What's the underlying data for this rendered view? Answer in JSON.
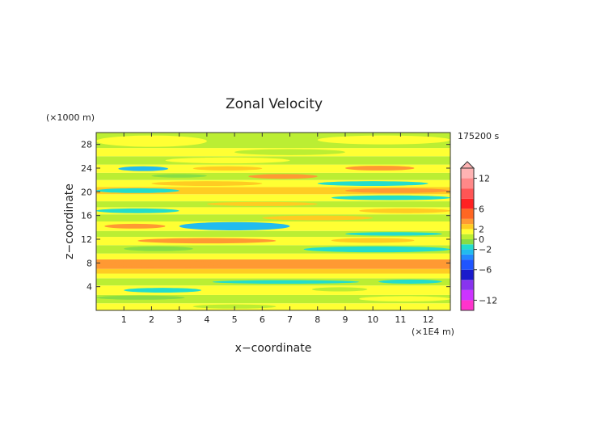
{
  "chart_data": {
    "type": "heatmap",
    "title": "Zonal Velocity",
    "xlabel": "x−coordinate",
    "ylabel": "z−coordinate",
    "x_unit": "(×1E4 m)",
    "y_unit": "(×1000 m)",
    "time_label": "175200 s",
    "xlim": [
      0,
      12.8
    ],
    "ylim": [
      0,
      30
    ],
    "x_ticks": [
      1,
      2,
      3,
      4,
      5,
      6,
      7,
      8,
      9,
      10,
      11,
      12
    ],
    "y_ticks": [
      4,
      8,
      12,
      16,
      20,
      24,
      28
    ],
    "colorbar": {
      "tick_labels": [
        "12",
        "6",
        "2",
        "0",
        "−2",
        "−6",
        "−12"
      ],
      "tick_values": [
        12,
        6,
        2,
        0,
        -2,
        -6,
        -12
      ],
      "levels": [
        {
          "lo": -14,
          "hi": -12,
          "color": "#ff33cc"
        },
        {
          "lo": -12,
          "hi": -10,
          "color": "#cc33ff"
        },
        {
          "lo": -10,
          "hi": -8,
          "color": "#8833ee"
        },
        {
          "lo": -8,
          "hi": -6,
          "color": "#1a1acc"
        },
        {
          "lo": -6,
          "hi": -4,
          "color": "#1f55ff"
        },
        {
          "lo": -4,
          "hi": -3,
          "color": "#2288ff"
        },
        {
          "lo": -3,
          "hi": -2,
          "color": "#22bbee"
        },
        {
          "lo": -2,
          "hi": -1,
          "color": "#22ddcc"
        },
        {
          "lo": -1,
          "hi": 0,
          "color": "#88dd44"
        },
        {
          "lo": 0,
          "hi": 1,
          "color": "#bbee33"
        },
        {
          "lo": 1,
          "hi": 2,
          "color": "#ffff33"
        },
        {
          "lo": 2,
          "hi": 3,
          "color": "#ffcc22"
        },
        {
          "lo": 3,
          "hi": 4,
          "color": "#ff9933"
        },
        {
          "lo": 4,
          "hi": 6,
          "color": "#ff6622"
        },
        {
          "lo": 6,
          "hi": 8,
          "color": "#ff2222"
        },
        {
          "lo": 8,
          "hi": 10,
          "color": "#ff5555"
        },
        {
          "lo": 10,
          "hi": 12,
          "color": "#ff8888"
        },
        {
          "lo": 12,
          "hi": 14,
          "color": "#ffb3b3"
        }
      ]
    },
    "bands": [
      {
        "z": [
          0,
          1.2
        ],
        "value": 1.3,
        "blobs": [
          {
            "x": [
              3.5,
              6.5
            ],
            "z": [
              0.3,
              1.0
            ],
            "value": 0.6
          }
        ]
      },
      {
        "z": [
          1.2,
          2.6
        ],
        "value": 0.6,
        "blobs": [
          {
            "x": [
              0,
              3.2
            ],
            "z": [
              1.8,
              2.5
            ],
            "value": -0.6
          },
          {
            "x": [
              9.5,
              12.8
            ],
            "z": [
              1.5,
              2.4
            ],
            "value": 1.4
          }
        ]
      },
      {
        "z": [
          2.6,
          4.2
        ],
        "value": 1.4,
        "blobs": [
          {
            "x": [
              1.0,
              3.8
            ],
            "z": [
              3.0,
              3.8
            ],
            "value": -1.5
          },
          {
            "x": [
              7.8,
              9.8
            ],
            "z": [
              3.2,
              3.9
            ],
            "value": 0.5
          }
        ]
      },
      {
        "z": [
          4.2,
          5.4
        ],
        "value": 0.5,
        "blobs": [
          {
            "x": [
              4.2,
              9.5
            ],
            "z": [
              4.5,
              5.1
            ],
            "value": -1.4
          },
          {
            "x": [
              10.2,
              12.5
            ],
            "z": [
              4.5,
              5.2
            ],
            "value": -1.2
          }
        ]
      },
      {
        "z": [
          5.4,
          6.2
        ],
        "value": 1.5,
        "blobs": []
      },
      {
        "z": [
          6.2,
          7.0
        ],
        "value": 2.5,
        "blobs": []
      },
      {
        "z": [
          7.0,
          8.6
        ],
        "value": 3.5,
        "blobs": [
          {
            "x": [
              0.5,
              4.5
            ],
            "z": [
              7.3,
              8.4
            ],
            "value": 3.8
          }
        ]
      },
      {
        "z": [
          8.6,
          9.6
        ],
        "value": 1.5,
        "blobs": []
      },
      {
        "z": [
          9.6,
          11.0
        ],
        "value": 0.5,
        "blobs": [
          {
            "x": [
              7.5,
              12.8
            ],
            "z": [
              9.8,
              10.8
            ],
            "value": -1.5
          },
          {
            "x": [
              1.0,
              3.5
            ],
            "z": [
              10.0,
              10.8
            ],
            "value": -0.5
          }
        ]
      },
      {
        "z": [
          11.0,
          12.4
        ],
        "value": 1.4,
        "blobs": [
          {
            "x": [
              1.5,
              6.5
            ],
            "z": [
              11.3,
              12.2
            ],
            "value": 3.2
          },
          {
            "x": [
              8.5,
              11.5
            ],
            "z": [
              11.4,
              12.2
            ],
            "value": 2.5
          }
        ]
      },
      {
        "z": [
          12.4,
          13.4
        ],
        "value": 0.5,
        "blobs": [
          {
            "x": [
              9.0,
              12.5
            ],
            "z": [
              12.6,
              13.2
            ],
            "value": -1.2
          }
        ]
      },
      {
        "z": [
          13.4,
          15.0
        ],
        "value": 1.4,
        "blobs": [
          {
            "x": [
              3.0,
              7.0
            ],
            "z": [
              13.5,
              14.9
            ],
            "value": -2.6
          },
          {
            "x": [
              0.3,
              2.5
            ],
            "z": [
              13.8,
              14.6
            ],
            "value": 3.2
          }
        ]
      },
      {
        "z": [
          15.0,
          16.2
        ],
        "value": 0.6,
        "blobs": [
          {
            "x": [
              6.0,
              10.0
            ],
            "z": [
              15.2,
              16.0
            ],
            "value": 2.3
          }
        ]
      },
      {
        "z": [
          16.2,
          17.4
        ],
        "value": 1.5,
        "blobs": [
          {
            "x": [
              0.0,
              3.0
            ],
            "z": [
              16.4,
              17.2
            ],
            "value": -1.6
          },
          {
            "x": [
              9.5,
              12.8
            ],
            "z": [
              16.4,
              17.2
            ],
            "value": 2.6
          }
        ]
      },
      {
        "z": [
          17.4,
          18.4
        ],
        "value": 0.7,
        "blobs": [
          {
            "x": [
              4.0,
              8.0
            ],
            "z": [
              17.6,
              18.3
            ],
            "value": 2.6
          }
        ]
      },
      {
        "z": [
          18.4,
          19.6
        ],
        "value": 1.5,
        "blobs": [
          {
            "x": [
              8.5,
              12.8
            ],
            "z": [
              18.6,
              19.4
            ],
            "value": -1.5
          }
        ]
      },
      {
        "z": [
          19.6,
          20.8
        ],
        "value": 2.5,
        "blobs": [
          {
            "x": [
              9.0,
              12.8
            ],
            "z": [
              19.8,
              20.6
            ],
            "value": 3.5
          },
          {
            "x": [
              0.0,
              3.0
            ],
            "z": [
              19.8,
              20.6
            ],
            "value": -1.3
          }
        ]
      },
      {
        "z": [
          20.8,
          22.0
        ],
        "value": 1.5,
        "blobs": [
          {
            "x": [
              2.0,
              6.0
            ],
            "z": [
              21.0,
              21.8
            ],
            "value": 2.8
          },
          {
            "x": [
              8.0,
              12.0
            ],
            "z": [
              21.0,
              21.8
            ],
            "value": -1.4
          }
        ]
      },
      {
        "z": [
          22.0,
          23.2
        ],
        "value": 0.6,
        "blobs": [
          {
            "x": [
              5.5,
              8.0
            ],
            "z": [
              22.2,
              23.0
            ],
            "value": 3.2
          },
          {
            "x": [
              2.0,
              4.0
            ],
            "z": [
              22.4,
              23.0
            ],
            "value": -0.5
          }
        ]
      },
      {
        "z": [
          23.2,
          24.6
        ],
        "value": 1.3,
        "blobs": [
          {
            "x": [
              0.8,
              2.6
            ],
            "z": [
              23.5,
              24.3
            ],
            "value": -2.4
          },
          {
            "x": [
              9.0,
              11.5
            ],
            "z": [
              23.6,
              24.4
            ],
            "value": 3.2
          },
          {
            "x": [
              3.5,
              6.0
            ],
            "z": [
              23.6,
              24.3
            ],
            "value": 2.5
          }
        ]
      },
      {
        "z": [
          24.6,
          26.0
        ],
        "value": 0.6,
        "blobs": [
          {
            "x": [
              2.5,
              7.0
            ],
            "z": [
              24.8,
              25.8
            ],
            "value": 1.5
          }
        ]
      },
      {
        "z": [
          26.0,
          27.4
        ],
        "value": 1.4,
        "blobs": [
          {
            "x": [
              5.0,
              9.0
            ],
            "z": [
              26.2,
              27.2
            ],
            "value": 0.5
          }
        ]
      },
      {
        "z": [
          27.4,
          30.0
        ],
        "value": 0.7,
        "blobs": [
          {
            "x": [
              0.0,
              4.0
            ],
            "z": [
              27.6,
              29.5
            ],
            "value": 1.4
          },
          {
            "x": [
              8.0,
              12.8
            ],
            "z": [
              28.0,
              29.5
            ],
            "value": 1.4
          }
        ]
      }
    ]
  }
}
